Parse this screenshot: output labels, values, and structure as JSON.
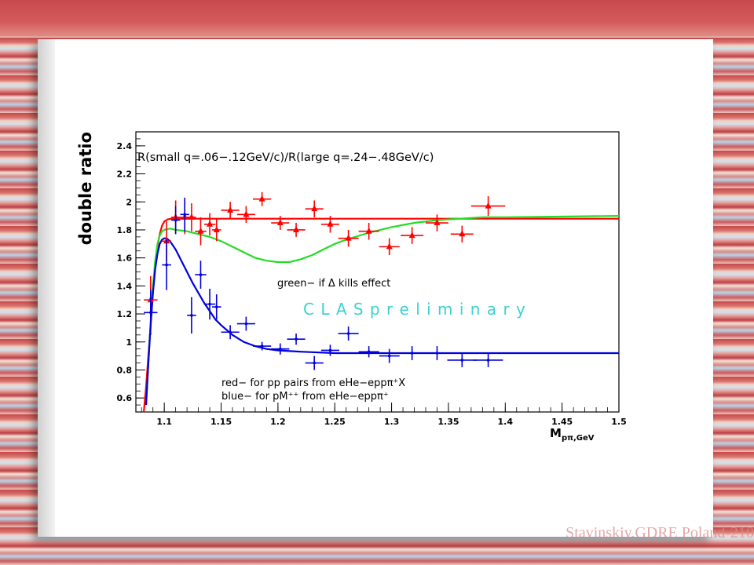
{
  "footer": {
    "text": "Stavinskiy,GDRE Poland-210"
  },
  "chart_data": {
    "type": "scatter",
    "title": "R(small q=.06−.12GeV/c)/R(large q=.24−.48GeV/c)",
    "xlabel_main": "M",
    "xlabel_sub": "pπ,GeV",
    "ylabel": "double ratio",
    "xlim": [
      1.075,
      1.5
    ],
    "ylim": [
      0.5,
      2.5
    ],
    "x_ticks": [
      "1.1",
      "1.15",
      "1.2",
      "1.25",
      "1.3",
      "1.35",
      "1.4",
      "1.45",
      "1.5"
    ],
    "y_ticks": [
      "0.6",
      "0.8",
      "1",
      "1.2",
      "1.4",
      "1.6",
      "1.8",
      "2",
      "2.2",
      "2.4"
    ],
    "watermark": "C L A S  p r e l i m i n a r y",
    "notes": {
      "green": "green− if Δ kills effect",
      "red": "red− for pp pairs from eHe−eppπ⁺X",
      "blue": "blue− for pM⁺⁺ from eHe−eppπ⁺"
    },
    "colors": {
      "red": "#ff0000",
      "blue": "#0000dd",
      "green": "#22dd22"
    },
    "series": [
      {
        "color": "red",
        "points": [
          {
            "x": 1.088,
            "y": 1.3,
            "xerr": 0.006,
            "yerr": 0.17
          },
          {
            "x": 1.102,
            "y": 1.72,
            "xerr": 0.004,
            "yerr": 0.14
          },
          {
            "x": 1.11,
            "y": 1.89,
            "xerr": 0.004,
            "yerr": 0.12
          },
          {
            "x": 1.118,
            "y": 1.89,
            "xerr": 0.004,
            "yerr": 0.12
          },
          {
            "x": 1.124,
            "y": 1.89,
            "xerr": 0.004,
            "yerr": 0.1
          },
          {
            "x": 1.132,
            "y": 1.79,
            "xerr": 0.005,
            "yerr": 0.1
          },
          {
            "x": 1.14,
            "y": 1.84,
            "xerr": 0.005,
            "yerr": 0.08
          },
          {
            "x": 1.146,
            "y": 1.8,
            "xerr": 0.004,
            "yerr": 0.08
          },
          {
            "x": 1.158,
            "y": 1.94,
            "xerr": 0.008,
            "yerr": 0.06
          },
          {
            "x": 1.172,
            "y": 1.91,
            "xerr": 0.008,
            "yerr": 0.06
          },
          {
            "x": 1.186,
            "y": 2.02,
            "xerr": 0.008,
            "yerr": 0.05
          },
          {
            "x": 1.202,
            "y": 1.85,
            "xerr": 0.008,
            "yerr": 0.05
          },
          {
            "x": 1.216,
            "y": 1.8,
            "xerr": 0.008,
            "yerr": 0.05
          },
          {
            "x": 1.232,
            "y": 1.95,
            "xerr": 0.008,
            "yerr": 0.06
          },
          {
            "x": 1.246,
            "y": 1.84,
            "xerr": 0.008,
            "yerr": 0.06
          },
          {
            "x": 1.262,
            "y": 1.74,
            "xerr": 0.009,
            "yerr": 0.06
          },
          {
            "x": 1.28,
            "y": 1.79,
            "xerr": 0.009,
            "yerr": 0.06
          },
          {
            "x": 1.298,
            "y": 1.68,
            "xerr": 0.009,
            "yerr": 0.06
          },
          {
            "x": 1.318,
            "y": 1.76,
            "xerr": 0.01,
            "yerr": 0.06
          },
          {
            "x": 1.34,
            "y": 1.85,
            "xerr": 0.01,
            "yerr": 0.06
          },
          {
            "x": 1.362,
            "y": 1.77,
            "xerr": 0.01,
            "yerr": 0.06
          },
          {
            "x": 1.385,
            "y": 1.97,
            "xerr": 0.015,
            "yerr": 0.07
          }
        ]
      },
      {
        "color": "blue",
        "points": [
          {
            "x": 1.088,
            "y": 1.21,
            "xerr": 0.006,
            "yerr": 0.16
          },
          {
            "x": 1.102,
            "y": 1.55,
            "xerr": 0.004,
            "yerr": 0.18
          },
          {
            "x": 1.11,
            "y": 1.87,
            "xerr": 0.004,
            "yerr": 0.1
          },
          {
            "x": 1.118,
            "y": 1.91,
            "xerr": 0.004,
            "yerr": 0.12
          },
          {
            "x": 1.124,
            "y": 1.19,
            "xerr": 0.004,
            "yerr": 0.13
          },
          {
            "x": 1.132,
            "y": 1.48,
            "xerr": 0.005,
            "yerr": 0.1
          },
          {
            "x": 1.14,
            "y": 1.27,
            "xerr": 0.005,
            "yerr": 0.11
          },
          {
            "x": 1.146,
            "y": 1.25,
            "xerr": 0.004,
            "yerr": 0.09
          },
          {
            "x": 1.158,
            "y": 1.07,
            "xerr": 0.008,
            "yerr": 0.05
          },
          {
            "x": 1.172,
            "y": 1.13,
            "xerr": 0.008,
            "yerr": 0.05
          },
          {
            "x": 1.186,
            "y": 0.97,
            "xerr": 0.008,
            "yerr": 0.03
          },
          {
            "x": 1.202,
            "y": 0.95,
            "xerr": 0.008,
            "yerr": 0.04
          },
          {
            "x": 1.216,
            "y": 1.02,
            "xerr": 0.008,
            "yerr": 0.04
          },
          {
            "x": 1.232,
            "y": 0.85,
            "xerr": 0.008,
            "yerr": 0.05
          },
          {
            "x": 1.246,
            "y": 0.94,
            "xerr": 0.008,
            "yerr": 0.04
          },
          {
            "x": 1.262,
            "y": 1.06,
            "xerr": 0.009,
            "yerr": 0.05
          },
          {
            "x": 1.28,
            "y": 0.93,
            "xerr": 0.009,
            "yerr": 0.04
          },
          {
            "x": 1.298,
            "y": 0.9,
            "xerr": 0.009,
            "yerr": 0.05
          },
          {
            "x": 1.318,
            "y": 0.92,
            "xerr": 0.01,
            "yerr": 0.05
          },
          {
            "x": 1.34,
            "y": 0.92,
            "xerr": 0.01,
            "yerr": 0.05
          },
          {
            "x": 1.362,
            "y": 0.87,
            "xerr": 0.013,
            "yerr": 0.05
          },
          {
            "x": 1.385,
            "y": 0.87,
            "xerr": 0.013,
            "yerr": 0.05
          }
        ]
      }
    ],
    "curves": [
      {
        "color": "red",
        "x": [
          1.082,
          1.084,
          1.086,
          1.088,
          1.09,
          1.092,
          1.094,
          1.096,
          1.098,
          1.1,
          1.103,
          1.106,
          1.11,
          1.12,
          1.15,
          1.2,
          1.3,
          1.4,
          1.5
        ],
        "y": [
          0.5,
          0.68,
          0.9,
          1.12,
          1.35,
          1.54,
          1.68,
          1.77,
          1.83,
          1.86,
          1.875,
          1.88,
          1.88,
          1.88,
          1.88,
          1.88,
          1.88,
          1.88,
          1.88
        ]
      },
      {
        "color": "green",
        "x": [
          1.084,
          1.086,
          1.088,
          1.09,
          1.092,
          1.094,
          1.096,
          1.098,
          1.1,
          1.105,
          1.11,
          1.12,
          1.13,
          1.14,
          1.15,
          1.16,
          1.17,
          1.18,
          1.19,
          1.2,
          1.21,
          1.22,
          1.23,
          1.24,
          1.25,
          1.26,
          1.28,
          1.3,
          1.32,
          1.34,
          1.36,
          1.38,
          1.4,
          1.45,
          1.5
        ],
        "y": [
          0.55,
          0.85,
          1.15,
          1.4,
          1.58,
          1.7,
          1.76,
          1.79,
          1.8,
          1.81,
          1.8,
          1.79,
          1.77,
          1.75,
          1.72,
          1.68,
          1.64,
          1.6,
          1.58,
          1.57,
          1.57,
          1.59,
          1.62,
          1.66,
          1.7,
          1.73,
          1.78,
          1.82,
          1.85,
          1.87,
          1.88,
          1.89,
          1.89,
          1.895,
          1.9
        ]
      },
      {
        "color": "blue",
        "x": [
          1.084,
          1.086,
          1.088,
          1.09,
          1.092,
          1.094,
          1.096,
          1.098,
          1.1,
          1.102,
          1.105,
          1.11,
          1.115,
          1.12,
          1.125,
          1.13,
          1.135,
          1.14,
          1.145,
          1.15,
          1.16,
          1.17,
          1.18,
          1.19,
          1.2,
          1.22,
          1.25,
          1.3,
          1.4,
          1.5
        ],
        "y": [
          0.55,
          0.85,
          1.12,
          1.35,
          1.52,
          1.63,
          1.7,
          1.73,
          1.74,
          1.74,
          1.72,
          1.66,
          1.58,
          1.5,
          1.42,
          1.35,
          1.28,
          1.22,
          1.16,
          1.12,
          1.05,
          1.0,
          0.97,
          0.95,
          0.94,
          0.93,
          0.92,
          0.92,
          0.92,
          0.92
        ]
      }
    ]
  }
}
